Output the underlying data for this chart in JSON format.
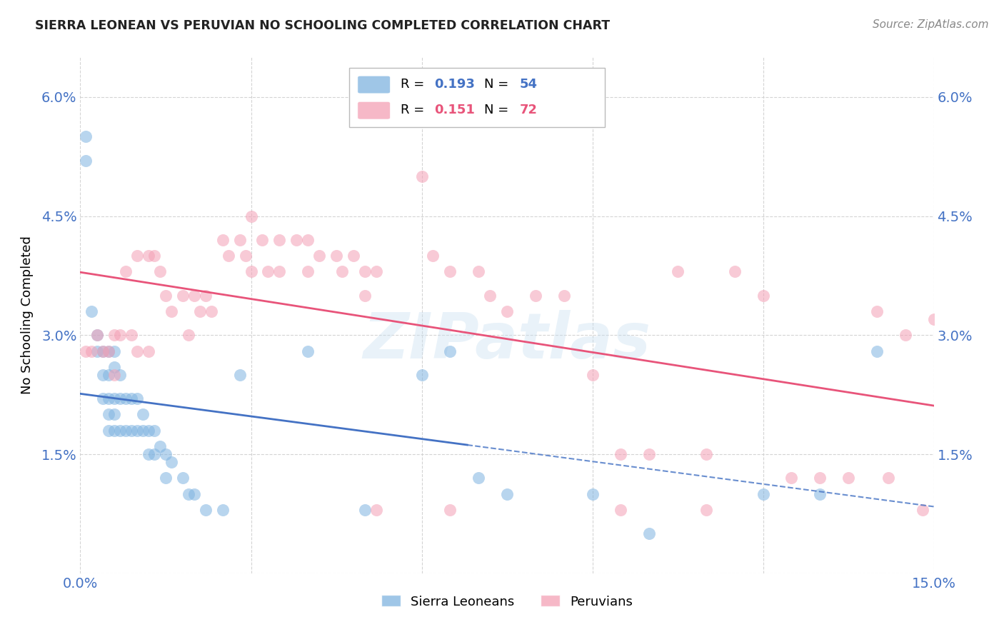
{
  "title": "SIERRA LEONEAN VS PERUVIAN NO SCHOOLING COMPLETED CORRELATION CHART",
  "source": "Source: ZipAtlas.com",
  "ylabel": "No Schooling Completed",
  "xlim": [
    0.0,
    0.15
  ],
  "ylim": [
    0.0,
    0.065
  ],
  "xticks": [
    0.0,
    0.03,
    0.06,
    0.09,
    0.12,
    0.15
  ],
  "yticks": [
    0.0,
    0.015,
    0.03,
    0.045,
    0.06
  ],
  "sierra_color": "#7fb3e0",
  "peruvian_color": "#f4a0b5",
  "sierra_line_color": "#4472c4",
  "peruvian_line_color": "#e8547a",
  "background_color": "#ffffff",
  "grid_color": "#d0d0d0",
  "watermark": "ZIPatlas",
  "title_color": "#222222",
  "tick_color": "#4472c4",
  "sierra_points": [
    [
      0.001,
      0.055
    ],
    [
      0.001,
      0.052
    ],
    [
      0.002,
      0.033
    ],
    [
      0.003,
      0.03
    ],
    [
      0.003,
      0.028
    ],
    [
      0.004,
      0.028
    ],
    [
      0.004,
      0.025
    ],
    [
      0.004,
      0.022
    ],
    [
      0.005,
      0.028
    ],
    [
      0.005,
      0.025
    ],
    [
      0.005,
      0.022
    ],
    [
      0.005,
      0.02
    ],
    [
      0.005,
      0.018
    ],
    [
      0.006,
      0.028
    ],
    [
      0.006,
      0.026
    ],
    [
      0.006,
      0.022
    ],
    [
      0.006,
      0.02
    ],
    [
      0.006,
      0.018
    ],
    [
      0.007,
      0.025
    ],
    [
      0.007,
      0.022
    ],
    [
      0.007,
      0.018
    ],
    [
      0.008,
      0.022
    ],
    [
      0.008,
      0.018
    ],
    [
      0.009,
      0.022
    ],
    [
      0.009,
      0.018
    ],
    [
      0.01,
      0.022
    ],
    [
      0.01,
      0.018
    ],
    [
      0.011,
      0.02
    ],
    [
      0.011,
      0.018
    ],
    [
      0.012,
      0.018
    ],
    [
      0.012,
      0.015
    ],
    [
      0.013,
      0.018
    ],
    [
      0.013,
      0.015
    ],
    [
      0.014,
      0.016
    ],
    [
      0.015,
      0.015
    ],
    [
      0.015,
      0.012
    ],
    [
      0.016,
      0.014
    ],
    [
      0.018,
      0.012
    ],
    [
      0.019,
      0.01
    ],
    [
      0.02,
      0.01
    ],
    [
      0.022,
      0.008
    ],
    [
      0.025,
      0.008
    ],
    [
      0.028,
      0.025
    ],
    [
      0.04,
      0.028
    ],
    [
      0.05,
      0.008
    ],
    [
      0.06,
      0.025
    ],
    [
      0.065,
      0.028
    ],
    [
      0.07,
      0.012
    ],
    [
      0.075,
      0.01
    ],
    [
      0.09,
      0.01
    ],
    [
      0.1,
      0.005
    ],
    [
      0.12,
      0.01
    ],
    [
      0.13,
      0.01
    ],
    [
      0.14,
      0.028
    ]
  ],
  "peruvian_points": [
    [
      0.001,
      0.028
    ],
    [
      0.002,
      0.028
    ],
    [
      0.003,
      0.03
    ],
    [
      0.004,
      0.028
    ],
    [
      0.005,
      0.028
    ],
    [
      0.006,
      0.03
    ],
    [
      0.006,
      0.025
    ],
    [
      0.007,
      0.03
    ],
    [
      0.008,
      0.038
    ],
    [
      0.009,
      0.03
    ],
    [
      0.01,
      0.04
    ],
    [
      0.01,
      0.028
    ],
    [
      0.012,
      0.04
    ],
    [
      0.012,
      0.028
    ],
    [
      0.013,
      0.04
    ],
    [
      0.014,
      0.038
    ],
    [
      0.015,
      0.035
    ],
    [
      0.016,
      0.033
    ],
    [
      0.018,
      0.035
    ],
    [
      0.019,
      0.03
    ],
    [
      0.02,
      0.035
    ],
    [
      0.021,
      0.033
    ],
    [
      0.022,
      0.035
    ],
    [
      0.023,
      0.033
    ],
    [
      0.025,
      0.042
    ],
    [
      0.026,
      0.04
    ],
    [
      0.028,
      0.042
    ],
    [
      0.029,
      0.04
    ],
    [
      0.03,
      0.045
    ],
    [
      0.03,
      0.038
    ],
    [
      0.032,
      0.042
    ],
    [
      0.033,
      0.038
    ],
    [
      0.035,
      0.042
    ],
    [
      0.035,
      0.038
    ],
    [
      0.038,
      0.042
    ],
    [
      0.04,
      0.042
    ],
    [
      0.04,
      0.038
    ],
    [
      0.042,
      0.04
    ],
    [
      0.045,
      0.04
    ],
    [
      0.046,
      0.038
    ],
    [
      0.048,
      0.04
    ],
    [
      0.05,
      0.038
    ],
    [
      0.05,
      0.035
    ],
    [
      0.052,
      0.038
    ],
    [
      0.055,
      0.058
    ],
    [
      0.06,
      0.05
    ],
    [
      0.062,
      0.04
    ],
    [
      0.065,
      0.038
    ],
    [
      0.07,
      0.038
    ],
    [
      0.072,
      0.035
    ],
    [
      0.075,
      0.033
    ],
    [
      0.08,
      0.035
    ],
    [
      0.085,
      0.035
    ],
    [
      0.09,
      0.025
    ],
    [
      0.095,
      0.015
    ],
    [
      0.1,
      0.015
    ],
    [
      0.105,
      0.038
    ],
    [
      0.11,
      0.015
    ],
    [
      0.115,
      0.038
    ],
    [
      0.12,
      0.035
    ],
    [
      0.125,
      0.012
    ],
    [
      0.13,
      0.012
    ],
    [
      0.135,
      0.012
    ],
    [
      0.14,
      0.033
    ],
    [
      0.142,
      0.012
    ],
    [
      0.145,
      0.03
    ],
    [
      0.148,
      0.008
    ],
    [
      0.15,
      0.032
    ],
    [
      0.052,
      0.008
    ],
    [
      0.065,
      0.008
    ],
    [
      0.095,
      0.008
    ],
    [
      0.11,
      0.008
    ]
  ]
}
